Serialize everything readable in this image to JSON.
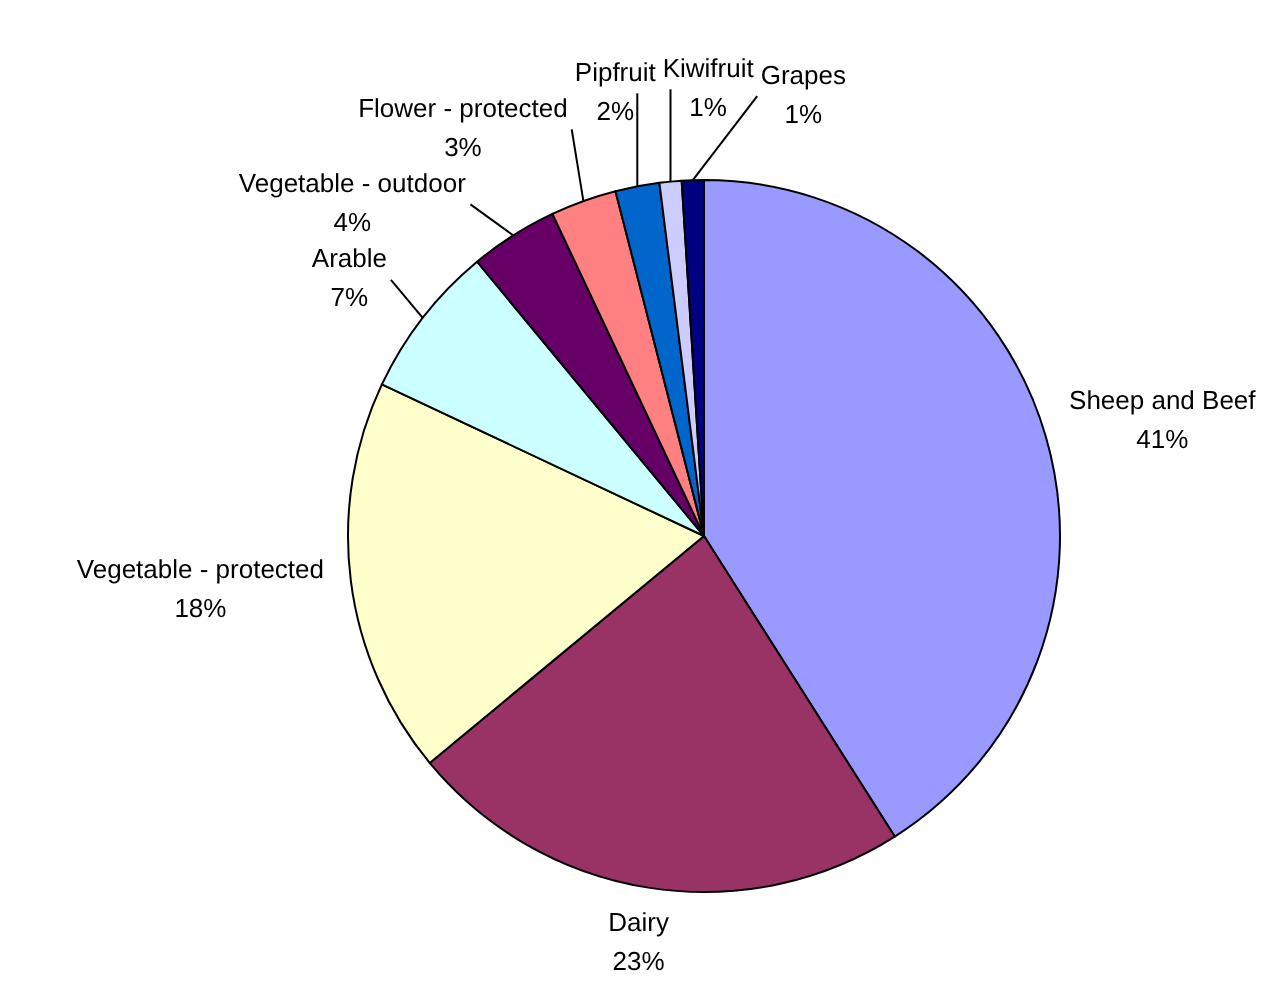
{
  "chart_data": {
    "type": "pie",
    "categories": [
      "Sheep and Beef",
      "Dairy",
      "Vegetable - protected",
      "Arable",
      "Vegetable - outdoor",
      "Flower - protected",
      "Pipfruit",
      "Kiwifruit",
      "Grapes"
    ],
    "values": [
      41,
      23,
      18,
      7,
      4,
      3,
      2,
      1,
      1
    ],
    "colors": [
      "#9999ff",
      "#993366",
      "#ffffcc",
      "#ccffff",
      "#660066",
      "#ff8080",
      "#0066cc",
      "#ccccff",
      "#000080"
    ],
    "value_labels": [
      "41%",
      "23%",
      "18%",
      "7%",
      "4%",
      "3%",
      "2%",
      "1%",
      "1%"
    ]
  }
}
